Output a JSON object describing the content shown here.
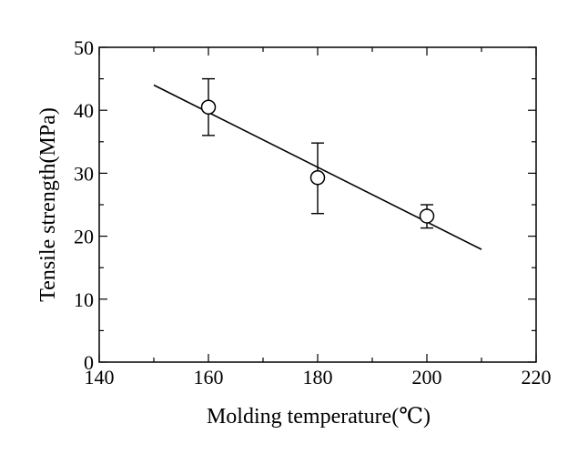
{
  "chart_data": {
    "type": "scatter",
    "title": "",
    "xlabel": "Molding temperature(℃)",
    "ylabel": "Tensile strength(MPa)",
    "xlim": [
      140,
      220
    ],
    "ylim": [
      0,
      50
    ],
    "x_ticks": [
      140,
      160,
      180,
      200,
      220
    ],
    "y_ticks": [
      0,
      10,
      20,
      30,
      40,
      50
    ],
    "grid": false,
    "legend": "none",
    "series": [
      {
        "marker": "open-circle",
        "points": [
          {
            "x": 160,
            "y": 40.5,
            "err_low": 36.0,
            "err_high": 45.0
          },
          {
            "x": 180,
            "y": 29.3,
            "err_low": 23.6,
            "err_high": 34.8
          },
          {
            "x": 200,
            "y": 23.2,
            "err_low": 21.3,
            "err_high": 25.0
          }
        ]
      }
    ],
    "fit_line": {
      "x": [
        150,
        210
      ],
      "y": [
        44.0,
        17.9
      ]
    },
    "colors": {
      "axis": "#000000",
      "marks": "#000000"
    }
  }
}
